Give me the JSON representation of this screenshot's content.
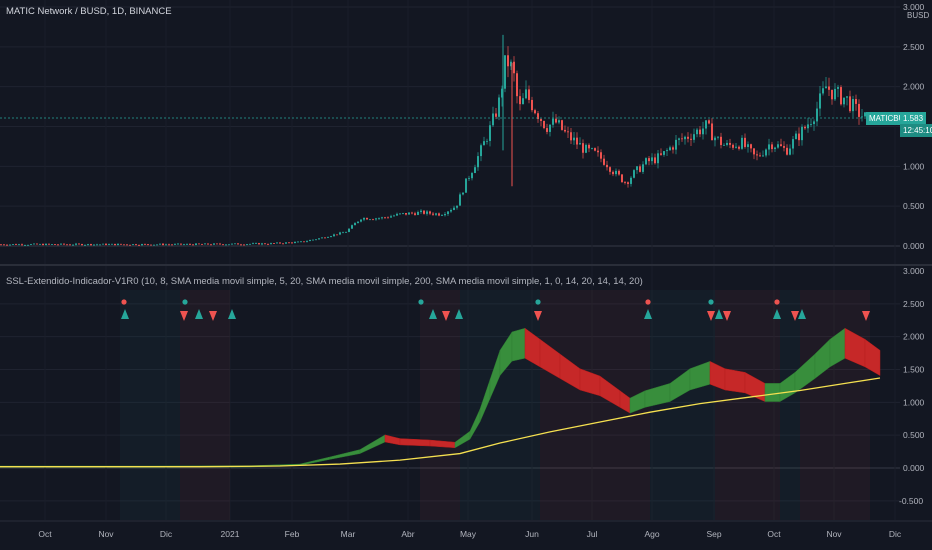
{
  "chart_title": "MATIC Network / BUSD, 1D, BINANCE",
  "currency": "BUSD",
  "price_axis": {
    "labels": [
      "3.000",
      "2.500",
      "2.000",
      "1.500",
      "1.000",
      "0.500",
      "0.000"
    ]
  },
  "indicator_title": "SSL-Extendido-Indicador-V1R0 (10, 8, SMA media movil simple, 5, 20, SMA media movil simple, 200, SMA media movil simple, 1, 0, 14, 20, 14, 14, 20)",
  "indicator_axis": {
    "labels": [
      "3.000",
      "2.500",
      "2.000",
      "1.500",
      "1.000",
      "0.500",
      "0.000",
      "-0.500"
    ]
  },
  "symbol_tag": "MATICBUSD",
  "last_price": "1.583",
  "countdown": "12:45:10",
  "x_axis": {
    "labels": [
      "Oct",
      "Nov",
      "Dic",
      "2021",
      "Feb",
      "Mar",
      "Abr",
      "May",
      "Jun",
      "Jul",
      "Ago",
      "Sep",
      "Oct",
      "Nov",
      "Dic"
    ]
  },
  "colors": {
    "up": "#26a69a",
    "down": "#ef5350",
    "ssl_up": "#388e3c",
    "ssl_down": "#c62828",
    "sma200": "#f5e050"
  },
  "chart_data": {
    "type": "candlestick",
    "price_points": [
      [
        0,
        0.02
      ],
      [
        60,
        0.02
      ],
      [
        120,
        0.02
      ],
      [
        180,
        0.02
      ],
      [
        240,
        0.025
      ],
      [
        270,
        0.03
      ],
      [
        300,
        0.05
      ],
      [
        320,
        0.1
      ],
      [
        345,
        0.18
      ],
      [
        360,
        0.35
      ],
      [
        380,
        0.35
      ],
      [
        400,
        0.4
      ],
      [
        420,
        0.42
      ],
      [
        440,
        0.4
      ],
      [
        455,
        0.5
      ],
      [
        465,
        0.8
      ],
      [
        480,
        1.2
      ],
      [
        490,
        1.5
      ],
      [
        498,
        1.8
      ],
      [
        505,
        2.35
      ],
      [
        512,
        2.2
      ],
      [
        518,
        1.7
      ],
      [
        525,
        1.9
      ],
      [
        535,
        1.7
      ],
      [
        545,
        1.5
      ],
      [
        555,
        1.55
      ],
      [
        565,
        1.4
      ],
      [
        575,
        1.3
      ],
      [
        585,
        1.2
      ],
      [
        595,
        1.15
      ],
      [
        605,
        1.05
      ],
      [
        615,
        0.9
      ],
      [
        625,
        0.8
      ],
      [
        632,
        0.9
      ],
      [
        645,
        1.05
      ],
      [
        660,
        1.12
      ],
      [
        675,
        1.3
      ],
      [
        690,
        1.4
      ],
      [
        705,
        1.5
      ],
      [
        715,
        1.35
      ],
      [
        725,
        1.25
      ],
      [
        740,
        1.3
      ],
      [
        755,
        1.1
      ],
      [
        770,
        1.3
      ],
      [
        785,
        1.2
      ],
      [
        795,
        1.35
      ],
      [
        805,
        1.5
      ],
      [
        815,
        1.7
      ],
      [
        825,
        2.0
      ],
      [
        835,
        1.9
      ],
      [
        845,
        1.85
      ],
      [
        855,
        1.7
      ],
      [
        865,
        1.6
      ]
    ],
    "ssl_points": [
      [
        0,
        0.02
      ],
      [
        150,
        0.02
      ],
      [
        250,
        0.025
      ],
      [
        300,
        0.05
      ],
      [
        330,
        0.15
      ],
      [
        360,
        0.25
      ],
      [
        385,
        0.45
      ],
      [
        400,
        0.4
      ],
      [
        430,
        0.38
      ],
      [
        455,
        0.35
      ],
      [
        470,
        0.5
      ],
      [
        480,
        0.8
      ],
      [
        490,
        1.2
      ],
      [
        500,
        1.6
      ],
      [
        512,
        1.85
      ],
      [
        525,
        1.9
      ],
      [
        540,
        1.75
      ],
      [
        560,
        1.55
      ],
      [
        580,
        1.35
      ],
      [
        600,
        1.25
      ],
      [
        620,
        1.05
      ],
      [
        630,
        0.95
      ],
      [
        645,
        1.05
      ],
      [
        670,
        1.15
      ],
      [
        690,
        1.35
      ],
      [
        710,
        1.45
      ],
      [
        725,
        1.35
      ],
      [
        745,
        1.3
      ],
      [
        765,
        1.15
      ],
      [
        780,
        1.15
      ],
      [
        795,
        1.3
      ],
      [
        815,
        1.55
      ],
      [
        830,
        1.75
      ],
      [
        845,
        1.9
      ],
      [
        865,
        1.75
      ],
      [
        880,
        1.6
      ]
    ],
    "sma200_points": [
      [
        0,
        0.02
      ],
      [
        200,
        0.02
      ],
      [
        280,
        0.03
      ],
      [
        340,
        0.06
      ],
      [
        400,
        0.12
      ],
      [
        460,
        0.22
      ],
      [
        500,
        0.38
      ],
      [
        550,
        0.55
      ],
      [
        600,
        0.7
      ],
      [
        650,
        0.85
      ],
      [
        700,
        0.98
      ],
      [
        750,
        1.08
      ],
      [
        800,
        1.18
      ],
      [
        850,
        1.3
      ],
      [
        880,
        1.37
      ]
    ],
    "ssl_signals": [
      {
        "x": 125,
        "dir": "up"
      },
      {
        "x": 184,
        "dir": "down"
      },
      {
        "x": 199,
        "dir": "up"
      },
      {
        "x": 213,
        "dir": "down"
      },
      {
        "x": 232,
        "dir": "up"
      },
      {
        "x": 433,
        "dir": "up"
      },
      {
        "x": 446,
        "dir": "down"
      },
      {
        "x": 459,
        "dir": "up"
      },
      {
        "x": 538,
        "dir": "down"
      },
      {
        "x": 648,
        "dir": "up"
      },
      {
        "x": 711,
        "dir": "down"
      },
      {
        "x": 719,
        "dir": "up"
      },
      {
        "x": 727,
        "dir": "down"
      },
      {
        "x": 777,
        "dir": "up"
      },
      {
        "x": 795,
        "dir": "down"
      },
      {
        "x": 802,
        "dir": "up"
      },
      {
        "x": 866,
        "dir": "down"
      }
    ],
    "dots": [
      {
        "x": 124,
        "c": "down"
      },
      {
        "x": 185,
        "c": "up"
      },
      {
        "x": 421,
        "c": "up"
      },
      {
        "x": 538,
        "c": "up"
      },
      {
        "x": 648,
        "c": "down"
      },
      {
        "x": 711,
        "c": "up"
      },
      {
        "x": 777,
        "c": "down"
      }
    ]
  }
}
